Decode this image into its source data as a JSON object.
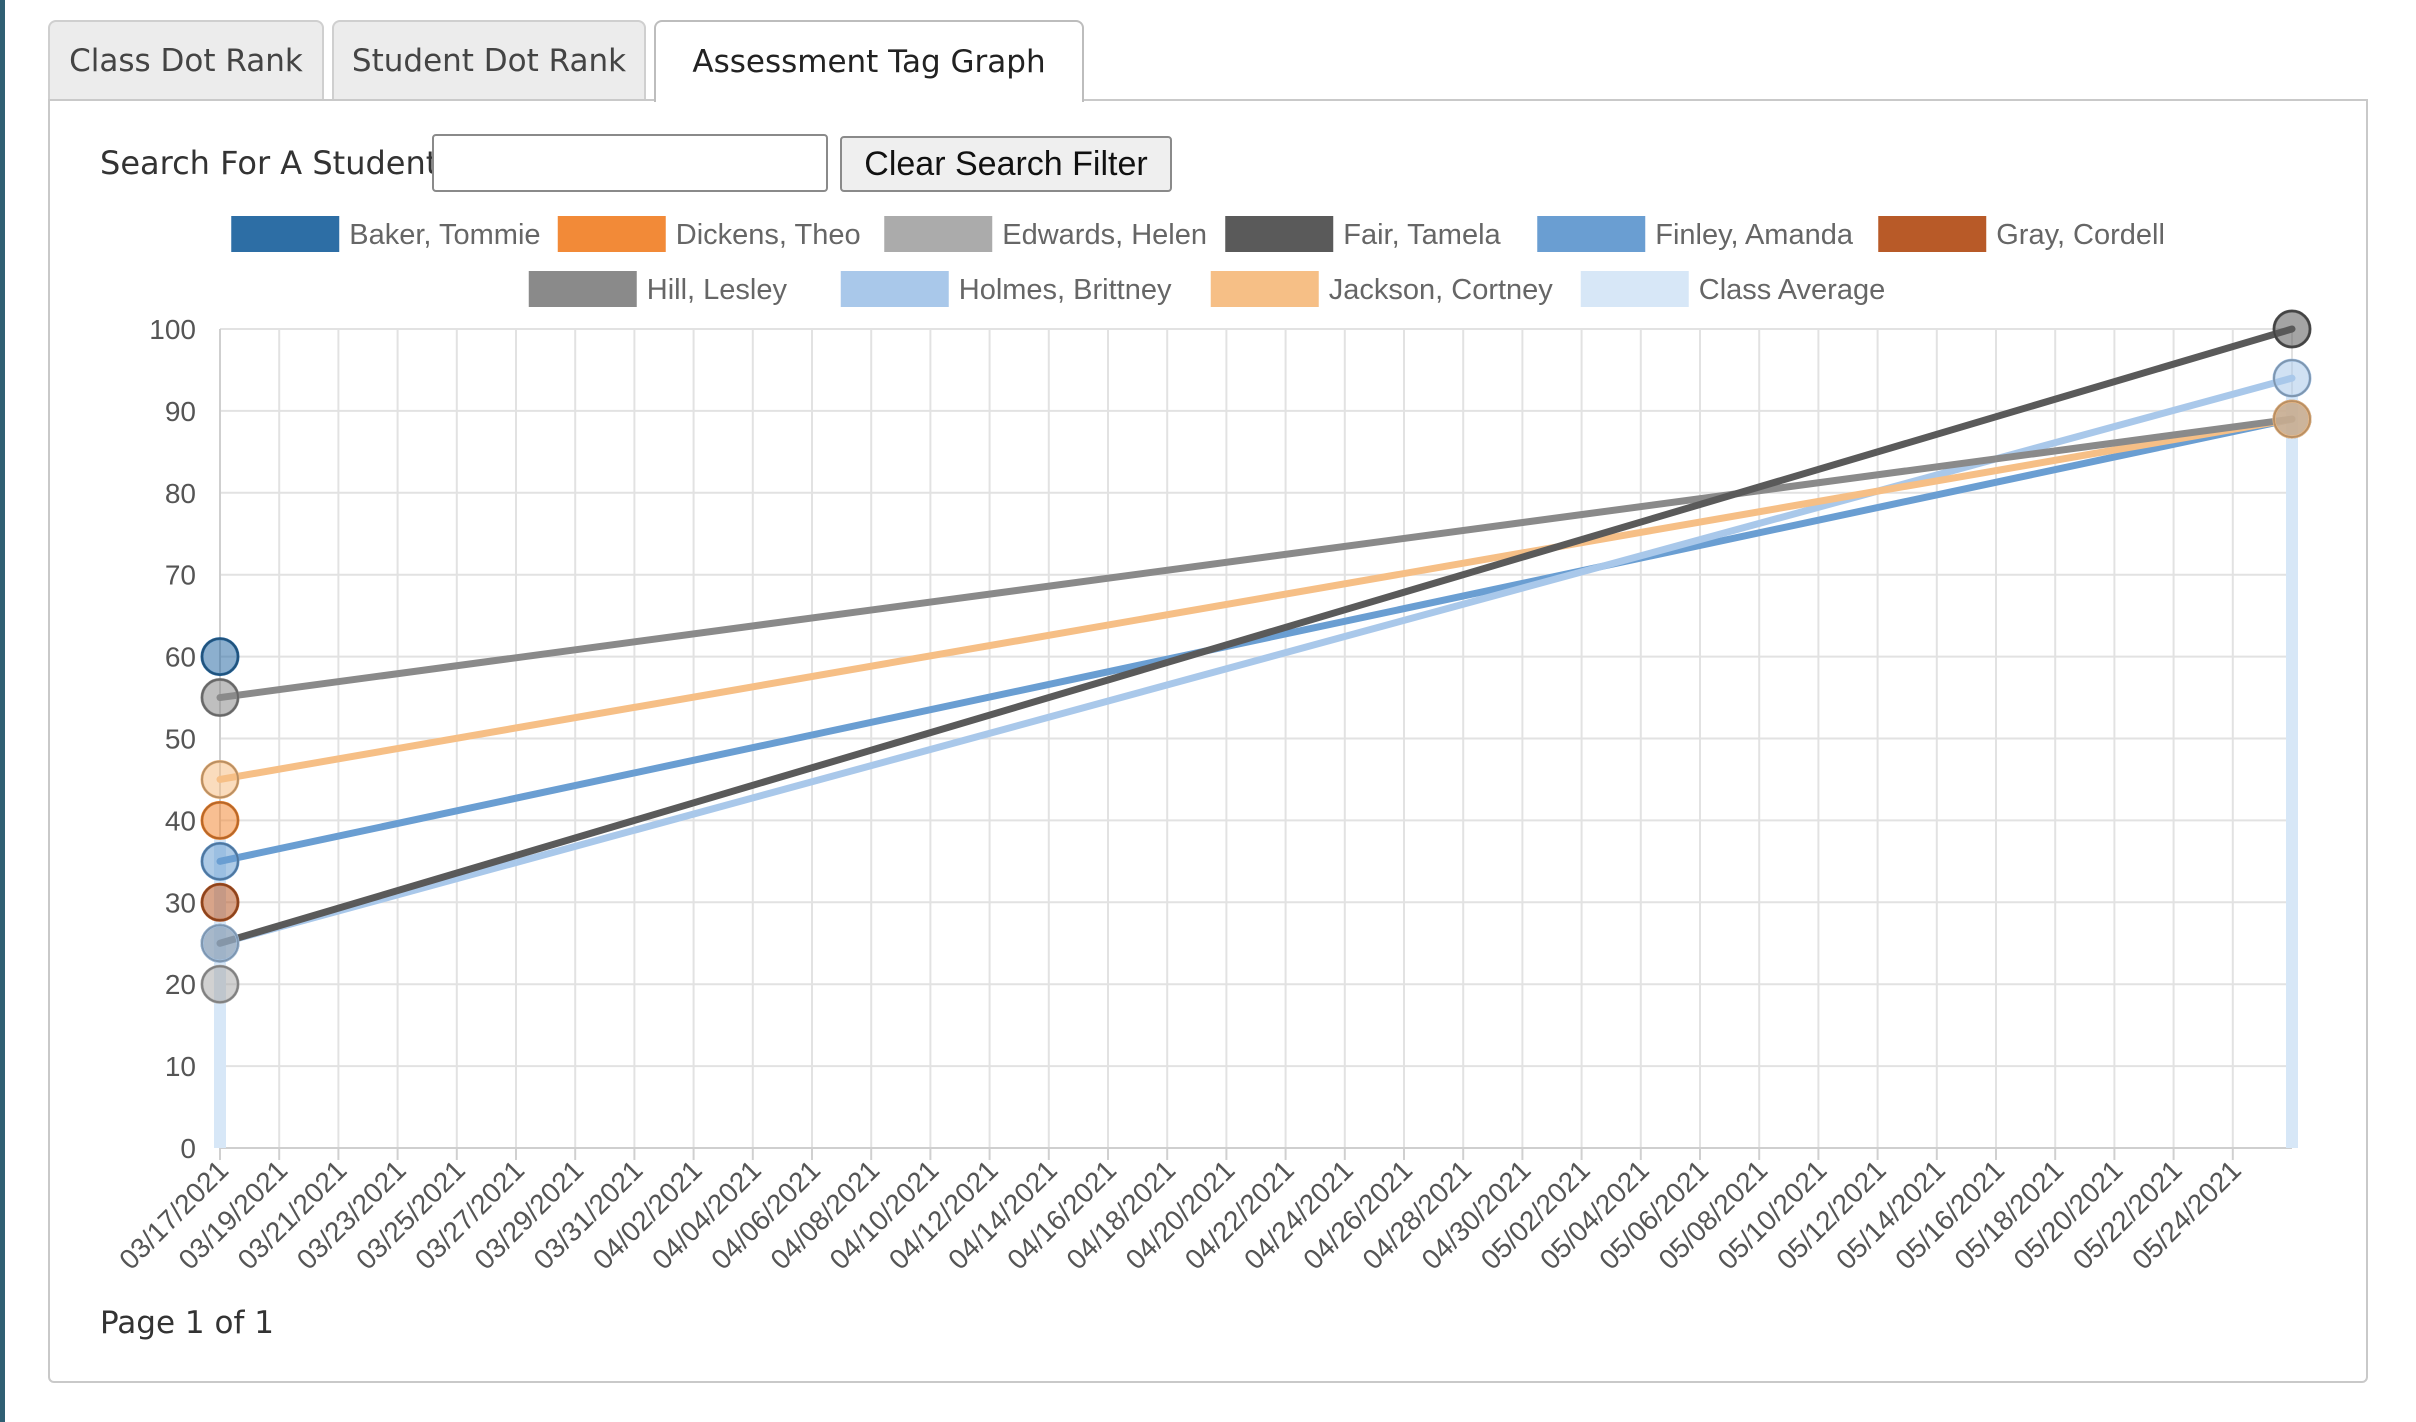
{
  "tabs": [
    {
      "label": "Class Dot Rank",
      "active": false
    },
    {
      "label": "Student Dot Rank",
      "active": false
    },
    {
      "label": "Assessment Tag Graph",
      "active": true
    }
  ],
  "search": {
    "label": "Search For A Student:",
    "value": "",
    "placeholder": "",
    "clear_button": "Clear Search Filter"
  },
  "pagination": {
    "text": "Page 1 of 1"
  },
  "chart_data": {
    "type": "line",
    "title": "",
    "xlabel": "",
    "ylabel": "",
    "ylim": [
      0,
      100
    ],
    "yticks": [
      0,
      10,
      20,
      30,
      40,
      50,
      60,
      70,
      80,
      90,
      100
    ],
    "grid": true,
    "legend_position": "top",
    "x_categories": [
      "03/17/2021",
      "03/19/2021",
      "03/21/2021",
      "03/23/2021",
      "03/25/2021",
      "03/27/2021",
      "03/29/2021",
      "03/31/2021",
      "04/02/2021",
      "04/04/2021",
      "04/06/2021",
      "04/08/2021",
      "04/10/2021",
      "04/12/2021",
      "04/14/2021",
      "04/16/2021",
      "04/18/2021",
      "04/20/2021",
      "04/22/2021",
      "04/24/2021",
      "04/26/2021",
      "04/28/2021",
      "04/30/2021",
      "05/02/2021",
      "05/04/2021",
      "05/06/2021",
      "05/08/2021",
      "05/10/2021",
      "05/12/2021",
      "05/14/2021",
      "05/16/2021",
      "05/18/2021",
      "05/20/2021",
      "05/22/2021",
      "05/24/2021"
    ],
    "x_range": [
      "03/17/2021",
      "05/26/2021"
    ],
    "series": [
      {
        "name": "Baker, Tommie",
        "color": "#2d6ea5",
        "points": [
          {
            "x": "03/17/2021",
            "y": 60
          }
        ]
      },
      {
        "name": "Dickens, Theo",
        "color": "#f28a38",
        "points": [
          {
            "x": "03/17/2021",
            "y": 40
          }
        ]
      },
      {
        "name": "Edwards, Helen",
        "color": "#ababab",
        "points": [
          {
            "x": "03/17/2021",
            "y": 20
          }
        ]
      },
      {
        "name": "Fair, Tamela",
        "color": "#5a5a5a",
        "points": [
          {
            "x": "03/17/2021",
            "y": 25
          },
          {
            "x": "05/26/2021",
            "y": 100
          }
        ]
      },
      {
        "name": "Finley, Amanda",
        "color": "#6a9ed2",
        "points": [
          {
            "x": "03/17/2021",
            "y": 35
          },
          {
            "x": "05/26/2021",
            "y": 89
          }
        ]
      },
      {
        "name": "Gray, Cordell",
        "color": "#b85a28",
        "points": [
          {
            "x": "03/17/2021",
            "y": 30
          }
        ]
      },
      {
        "name": "Hill, Lesley",
        "color": "#8a8a8a",
        "points": [
          {
            "x": "03/17/2021",
            "y": 55
          },
          {
            "x": "05/26/2021",
            "y": 89
          }
        ]
      },
      {
        "name": "Holmes, Brittney",
        "color": "#a9c8ea",
        "points": [
          {
            "x": "03/17/2021",
            "y": 25
          },
          {
            "x": "05/26/2021",
            "y": 94
          }
        ]
      },
      {
        "name": "Jackson, Cortney",
        "color": "#f6bf86",
        "points": [
          {
            "x": "03/17/2021",
            "y": 45
          },
          {
            "x": "05/26/2021",
            "y": 89
          }
        ]
      },
      {
        "name": "Class Average",
        "color": "#d7e7f7",
        "points": [],
        "bars": [
          {
            "x": "03/17/2021",
            "y": 38
          },
          {
            "x": "05/26/2021",
            "y": 92
          }
        ]
      }
    ]
  }
}
